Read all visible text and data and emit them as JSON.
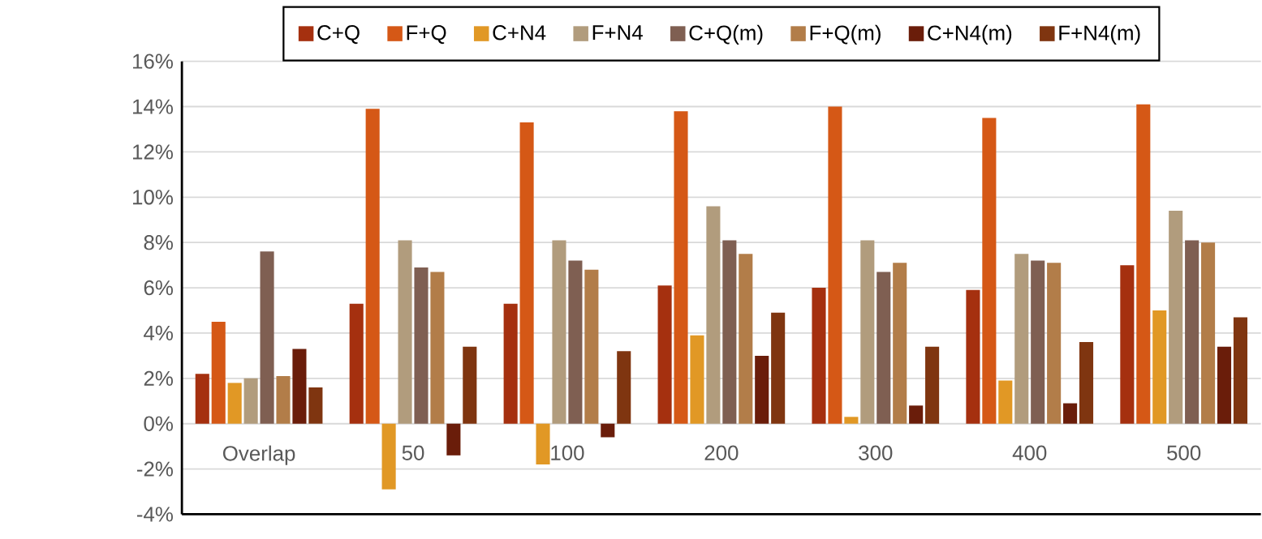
{
  "chart_data": {
    "type": "bar",
    "categories": [
      "Overlap",
      "50",
      "100",
      "200",
      "300",
      "400",
      "500"
    ],
    "series": [
      {
        "name": "C+Q",
        "color": "#a5300f",
        "values": [
          2.2,
          5.3,
          5.3,
          6.1,
          6.0,
          5.9,
          7.0
        ]
      },
      {
        "name": "F+Q",
        "color": "#d55816",
        "values": [
          4.5,
          13.9,
          13.3,
          13.8,
          14.0,
          13.5,
          14.1
        ]
      },
      {
        "name": "C+N4",
        "color": "#e19825",
        "values": [
          1.8,
          -2.9,
          -1.8,
          3.9,
          0.3,
          1.9,
          5.0
        ]
      },
      {
        "name": "F+N4",
        "color": "#b19c7d",
        "values": [
          2.0,
          8.1,
          8.1,
          9.6,
          8.1,
          7.5,
          9.4
        ]
      },
      {
        "name": "C+Q(m)",
        "color": "#7f5f52",
        "values": [
          7.6,
          6.9,
          7.2,
          8.1,
          6.7,
          7.2,
          8.1
        ]
      },
      {
        "name": "F+Q(m)",
        "color": "#b27d49",
        "values": [
          2.1,
          6.7,
          6.8,
          7.5,
          7.1,
          7.1,
          8.0
        ]
      },
      {
        "name": "C+N4(m)",
        "color": "#6a1d0a",
        "values": [
          3.3,
          -1.4,
          -0.6,
          3.0,
          0.8,
          0.9,
          3.4
        ]
      },
      {
        "name": "F+N4(m)",
        "color": "#7f3510",
        "values": [
          1.6,
          3.4,
          3.2,
          4.9,
          3.4,
          3.6,
          4.7
        ]
      }
    ],
    "ylim": [
      -4,
      16
    ],
    "yticks": [
      {
        "value": -4,
        "label": "-4%"
      },
      {
        "value": -2,
        "label": "-2%"
      },
      {
        "value": 0,
        "label": "0%"
      },
      {
        "value": 2,
        "label": "2%"
      },
      {
        "value": 4,
        "label": "4%"
      },
      {
        "value": 6,
        "label": "6%"
      },
      {
        "value": 8,
        "label": "8%"
      },
      {
        "value": 10,
        "label": "10%"
      },
      {
        "value": 12,
        "label": "12%"
      },
      {
        "value": 14,
        "label": "14%"
      },
      {
        "value": 16,
        "label": "16%"
      }
    ],
    "grid": "y",
    "legend": "top"
  }
}
